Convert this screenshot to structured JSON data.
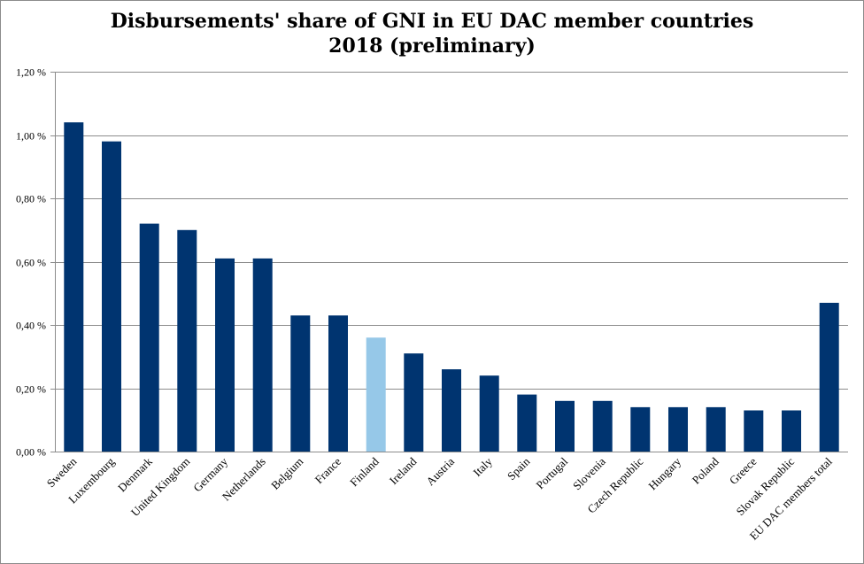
{
  "chart_data": {
    "type": "bar",
    "title": "Disbursements' share of GNI in EU DAC member countries",
    "subtitle": "2018 (preliminary)",
    "xlabel": "",
    "ylabel": "",
    "ylim": [
      0,
      1.2
    ],
    "yticks": [
      "0,00 %",
      "0,20 %",
      "0,40 %",
      "0,60 %",
      "0,80 %",
      "1,00 %",
      "1,20 %"
    ],
    "grid": true,
    "categories": [
      "Sweden",
      "Luxembourg",
      "Denmark",
      "United Kingdom",
      "Germany",
      "Netherlands",
      "Belgium",
      "France",
      "Finland",
      "Ireland",
      "Austria",
      "Italy",
      "Spain",
      "Portugal",
      "Slovenia",
      "Czech Republic",
      "Hungary",
      "Poland",
      "Greece",
      "Slovak Republic",
      "EU DAC members total"
    ],
    "values": [
      1.04,
      0.98,
      0.72,
      0.7,
      0.61,
      0.61,
      0.43,
      0.43,
      0.36,
      0.31,
      0.26,
      0.24,
      0.18,
      0.16,
      0.16,
      0.14,
      0.14,
      0.14,
      0.13,
      0.13,
      0.47
    ],
    "colors": {
      "default": "#003470",
      "highlight": "#96c8e8",
      "highlight_category": "Finland",
      "grid": "#8c8c8c"
    }
  }
}
